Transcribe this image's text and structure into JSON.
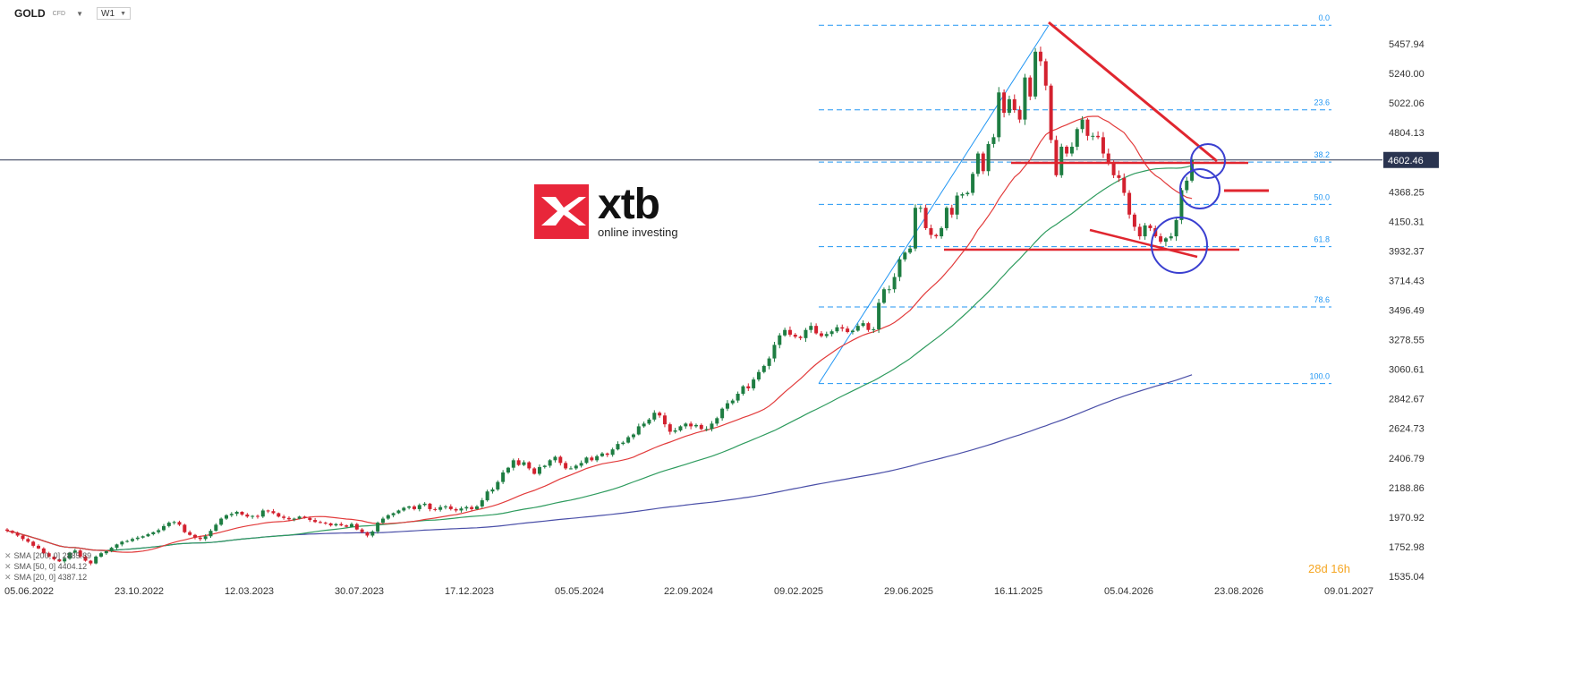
{
  "toolbar": {
    "symbol": "GOLD",
    "symbol_tag": "CFD",
    "timeframe": "W1"
  },
  "logo": {
    "word": "xtb",
    "subtitle": "online investing"
  },
  "countdown": "28d 16h",
  "legend": [
    {
      "label": "SMA [200, 0] 2885.89",
      "color": "#4a4fa8"
    },
    {
      "label": "SMA [50, 0] 4404.12",
      "color": "#2e9b5e"
    },
    {
      "label": "SMA [20, 0] 4387.12",
      "color": "#e23b3b"
    }
  ],
  "chart_data": {
    "type": "candlestick",
    "instrument": "GOLD",
    "timeframe": "W1",
    "x_ticks": [
      "05.06.2022",
      "23.10.2022",
      "12.03.2023",
      "30.07.2023",
      "17.12.2023",
      "05.05.2024",
      "22.09.2024",
      "09.02.2025",
      "29.06.2025",
      "16.11.2025",
      "05.04.2026",
      "23.08.2026",
      "09.01.2027"
    ],
    "y_ticks": [
      5457.94,
      5240.0,
      5022.06,
      4804.13,
      4602.46,
      4368.25,
      4150.31,
      3932.37,
      3714.43,
      3496.49,
      3278.55,
      3060.61,
      2842.67,
      2624.73,
      2406.79,
      2188.86,
      1970.92,
      1752.98,
      1535.04
    ],
    "ylim": [
      1535.04,
      5650
    ],
    "current_price": 4602.46,
    "current_price_color": "#2a3450",
    "up_color": "#1e7d42",
    "down_color": "#d3212f",
    "fibonacci": {
      "color": "#2196f3",
      "high": 5595,
      "low": 2955,
      "levels": [
        {
          "label": "0.0",
          "ratio": 0.0
        },
        {
          "label": "23.6",
          "ratio": 0.236
        },
        {
          "label": "38.2",
          "ratio": 0.382
        },
        {
          "label": "50.0",
          "ratio": 0.5
        },
        {
          "label": "61.8",
          "ratio": 0.618
        },
        {
          "label": "78.6",
          "ratio": 0.786
        },
        {
          "label": "100.0",
          "ratio": 1.0
        }
      ]
    },
    "weekly_closes": [
      1870,
      1855,
      1835,
      1810,
      1790,
      1760,
      1740,
      1705,
      1680,
      1660,
      1645,
      1665,
      1710,
      1725,
      1680,
      1650,
      1630,
      1680,
      1705,
      1720,
      1745,
      1770,
      1790,
      1795,
      1810,
      1820,
      1830,
      1845,
      1860,
      1875,
      1905,
      1930,
      1935,
      1915,
      1860,
      1840,
      1820,
      1810,
      1830,
      1870,
      1915,
      1960,
      1985,
      1995,
      2010,
      1990,
      1975,
      1980,
      1975,
      2020,
      2015,
      2000,
      1975,
      1965,
      1955,
      1960,
      1975,
      1965,
      1950,
      1935,
      1930,
      1925,
      1910,
      1920,
      1910,
      1900,
      1920,
      1880,
      1860,
      1835,
      1865,
      1930,
      1960,
      1985,
      2000,
      2020,
      2040,
      2050,
      2030,
      2060,
      2070,
      2030,
      2025,
      2045,
      2050,
      2030,
      2020,
      2035,
      2045,
      2030,
      2050,
      2095,
      2160,
      2175,
      2230,
      2300,
      2335,
      2390,
      2355,
      2375,
      2330,
      2290,
      2340,
      2350,
      2390,
      2415,
      2370,
      2330,
      2330,
      2350,
      2370,
      2410,
      2390,
      2420,
      2440,
      2430,
      2470,
      2510,
      2520,
      2560,
      2580,
      2640,
      2660,
      2690,
      2740,
      2720,
      2655,
      2600,
      2610,
      2640,
      2660,
      2640,
      2650,
      2620,
      2620,
      2660,
      2700,
      2770,
      2810,
      2830,
      2880,
      2935,
      2920,
      2985,
      3040,
      3085,
      3140,
      3240,
      3310,
      3350,
      3315,
      3300,
      3290,
      3350,
      3380,
      3325,
      3305,
      3320,
      3340,
      3370,
      3360,
      3335,
      3345,
      3380,
      3400,
      3350,
      3355,
      3550,
      3650,
      3650,
      3740,
      3870,
      3920,
      3950,
      4250,
      4250,
      4100,
      4050,
      4040,
      4100,
      4250,
      4200,
      4340,
      4350,
      4360,
      4500,
      4650,
      4520,
      4720,
      4770,
      5100,
      4950,
      5050,
      4970,
      4900,
      5210,
      5070,
      5400,
      5330,
      5150,
      4750,
      4490,
      4700,
      4650,
      4700,
      4830,
      4900,
      4780,
      4780,
      4770,
      4650,
      4580,
      4490,
      4470,
      4360,
      4200,
      4110,
      4040,
      4120,
      4100,
      4040,
      4000,
      4025,
      4040,
      4160,
      4380,
      4450,
      4602
    ]
  }
}
